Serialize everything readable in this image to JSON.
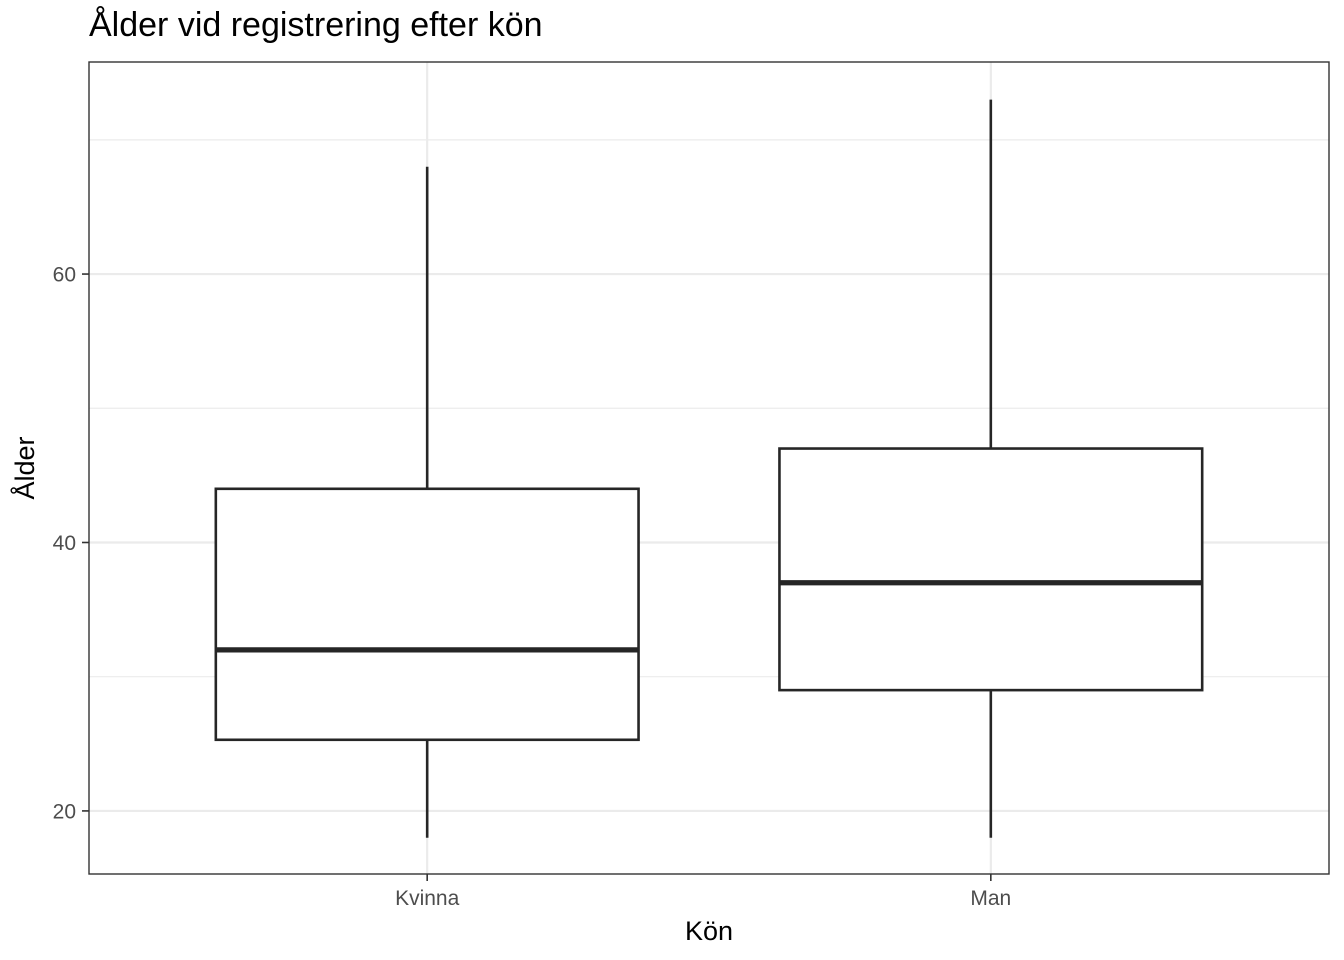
{
  "chart_data": {
    "type": "boxplot",
    "title": "Ålder vid registrering efter kön",
    "xlabel": "Kön",
    "ylabel": "Ålder",
    "categories": [
      "Kvinna",
      "Man"
    ],
    "boxes": [
      {
        "category": "Kvinna",
        "whisker_low": 18,
        "q1": 25.3,
        "median": 32,
        "q3": 44,
        "whisker_high": 68
      },
      {
        "category": "Man",
        "whisker_low": 18,
        "q1": 29,
        "median": 37,
        "q3": 47,
        "whisker_high": 73
      }
    ],
    "yticks": [
      20,
      40,
      60
    ],
    "ylim": [
      15.3,
      75.8
    ],
    "grid": true,
    "legend": "none",
    "colors": {
      "box_stroke": "#262626",
      "box_fill": "#ffffff",
      "grid": "#ebebeb",
      "panel_border": "#333333"
    }
  }
}
